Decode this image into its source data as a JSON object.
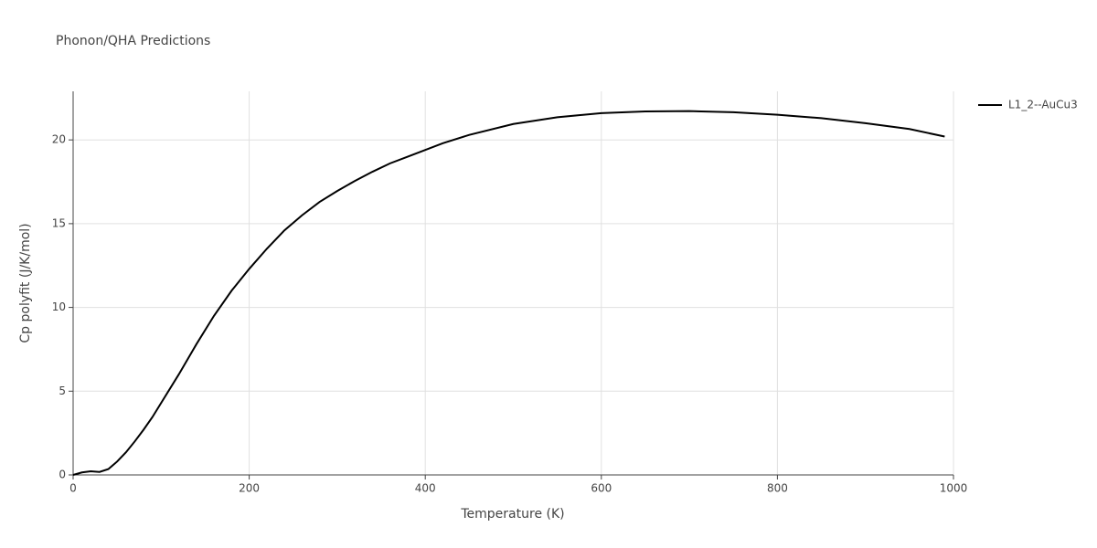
{
  "chart_data": {
    "type": "line",
    "title": "Phonon/QHA Predictions",
    "x_label": "Temperature (K)",
    "y_label": "Cp polyfit (J/K/mol)",
    "x": [
      0,
      10,
      20,
      30,
      40,
      50,
      60,
      70,
      80,
      90,
      100,
      120,
      140,
      160,
      180,
      200,
      220,
      240,
      260,
      280,
      300,
      320,
      340,
      360,
      380,
      400,
      420,
      450,
      500,
      550,
      600,
      650,
      700,
      750,
      800,
      850,
      900,
      950,
      990
    ],
    "series": [
      {
        "name": "L1_2--AuCu3",
        "color": "#000000",
        "values": [
          0,
          0.15,
          0.22,
          0.18,
          0.35,
          0.8,
          1.35,
          2.0,
          2.7,
          3.45,
          4.3,
          6.0,
          7.8,
          9.5,
          11.0,
          12.3,
          13.5,
          14.6,
          15.5,
          16.3,
          16.95,
          17.55,
          18.1,
          18.6,
          19.0,
          19.4,
          19.8,
          20.3,
          20.95,
          21.35,
          21.6,
          21.7,
          21.72,
          21.65,
          21.5,
          21.3,
          21.0,
          20.65,
          20.2
        ]
      }
    ],
    "xlim": [
      0,
      1000
    ],
    "xticks": [
      0,
      200,
      400,
      600,
      800,
      1000
    ],
    "ylim": [
      0,
      22.9
    ],
    "yticks": [
      0,
      5,
      10,
      15,
      20
    ],
    "grid": true,
    "legend": "right"
  }
}
